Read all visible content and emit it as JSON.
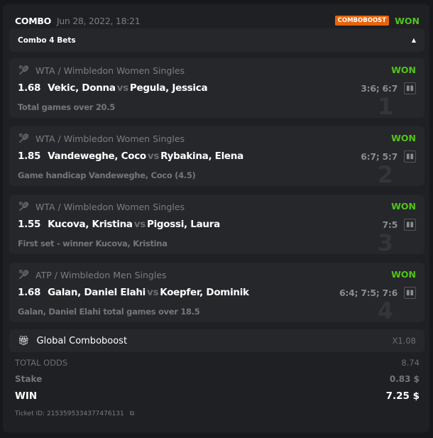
{
  "header": {
    "title": "COMBO",
    "date": "Jun 28, 2022, 18:21",
    "badge": "COMBOBOOST",
    "status": "WON"
  },
  "combo": {
    "label": "Combo 4 Bets",
    "toggle_icon": "caret-up-icon"
  },
  "legs": [
    {
      "num": "1",
      "league": "WTA / Wimbledon Women Singles",
      "status": "WON",
      "odds": "1.68",
      "home": "Vekic, Donna",
      "vs": "vs",
      "away": "Pegula, Jessica",
      "score": "3:6; 6:7",
      "market": "Total games over 20.5"
    },
    {
      "num": "2",
      "league": "WTA / Wimbledon Women Singles",
      "status": "WON",
      "odds": "1.85",
      "home": "Vandeweghe, Coco",
      "vs": "vs",
      "away": "Rybakina, Elena",
      "score": "6:7; 5:7",
      "market": "Game handicap Vandeweghe, Coco (4.5)"
    },
    {
      "num": "3",
      "league": "WTA / Wimbledon Women Singles",
      "status": "WON",
      "odds": "1.55",
      "home": "Kucova, Kristina",
      "vs": "vs",
      "away": "Pigossi, Laura",
      "score": "7:5",
      "market": "First set - winner Kucova, Kristina"
    },
    {
      "num": "4",
      "league": "ATP / Wimbledon Men Singles",
      "status": "WON",
      "odds": "1.68",
      "home": "Galan, Daniel Elahi",
      "vs": "vs",
      "away": "Koepfer, Dominik",
      "score": "6:4; 7:5; 7:6",
      "market": "Galan, Daniel Elahi total games over 18.5"
    }
  ],
  "boost": {
    "label": "Global Comboboost",
    "value": "X1.08"
  },
  "totals": {
    "odds_label": "TOTAL ODDS",
    "odds": "8.74",
    "stake_label": "Stake",
    "stake": "0.83 $",
    "win_label": "WIN",
    "win": "7.25 $"
  },
  "ticket": "Ticket ID: 2153595334377476131",
  "colors": {
    "won": "#52c41a",
    "badge": "#e8640c"
  }
}
